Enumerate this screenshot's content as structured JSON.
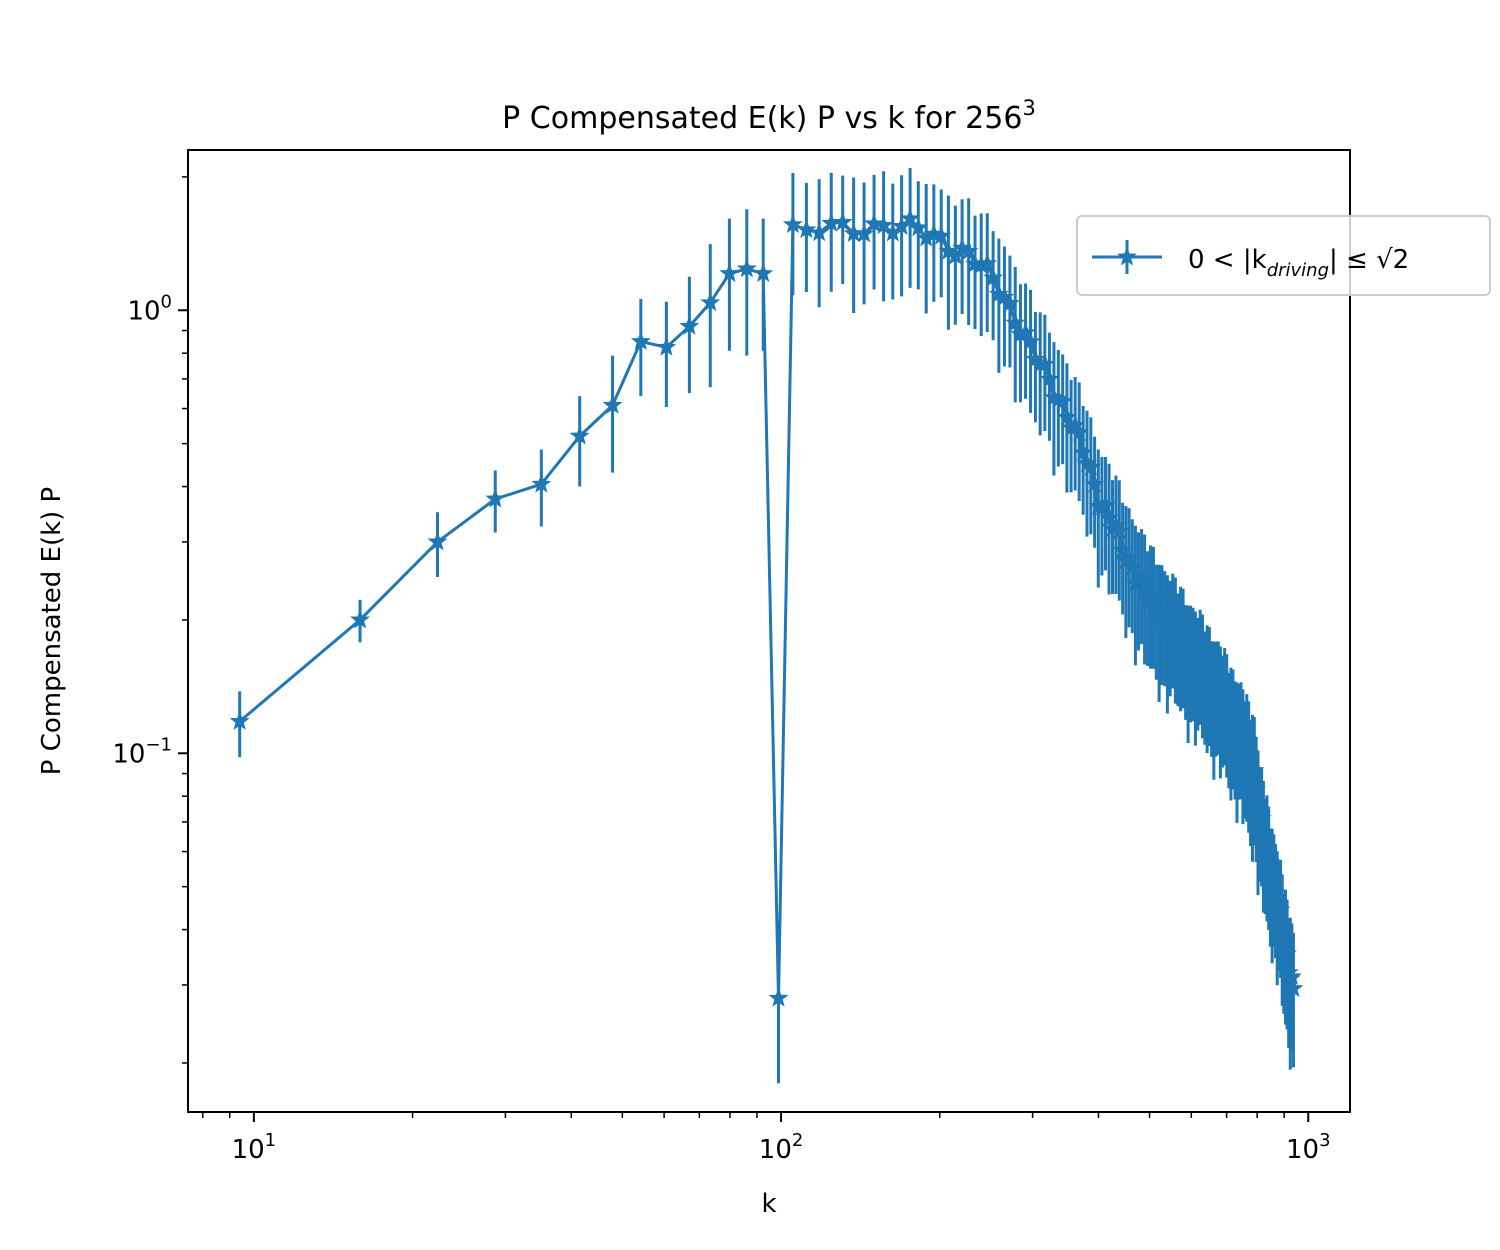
{
  "chart_data": {
    "type": "line",
    "title": {
      "main": "P Compensated E(k) P vs k for 256",
      "sup": "3"
    },
    "xlabel": "k",
    "ylabel": "P Compensated E(k) P",
    "xscale": "log",
    "yscale": "log",
    "xlim": [
      7.5,
      1200
    ],
    "ylim": [
      0.0155,
      2.3
    ],
    "xticks": [
      {
        "value": 10,
        "base": "10",
        "exp": "1"
      },
      {
        "value": 100,
        "base": "10",
        "exp": "2"
      },
      {
        "value": 1000,
        "base": "10",
        "exp": "3"
      }
    ],
    "yticks": [
      {
        "value": 0.1,
        "base": "10",
        "exp": "−1"
      },
      {
        "value": 1,
        "base": "10",
        "exp": "0"
      }
    ],
    "grid": false,
    "legend": {
      "placement": "upper right",
      "label_text": "0 < |k",
      "label_sub": "driving",
      "label_tail": "| ≤ √2"
    },
    "series": [
      {
        "name": "0 < |k_driving| ≤ √2",
        "color": "#1f77b4",
        "marker": "star",
        "x": [
          9.4,
          15.9,
          22.3,
          28.7,
          35.1,
          41.5,
          47.9,
          54.2,
          60.6,
          67.0,
          73.4,
          79.8,
          86.1,
          92.5
        ],
        "y": [
          0.118,
          0.2,
          0.3,
          0.375,
          0.405,
          0.52,
          0.61,
          0.85,
          0.825,
          0.92,
          1.04,
          1.21,
          1.24,
          1.21
        ],
        "yerr": [
          0.02,
          0.022,
          0.05,
          0.06,
          0.08,
          0.12,
          0.18,
          0.21,
          0.22,
          0.27,
          0.37,
          0.4,
          0.45,
          0.4
        ],
        "continuation_envelope": {
          "x": [
            100,
            120,
            140,
            160,
            180,
            200,
            230,
            260,
            300,
            350,
            400,
            450,
            500,
            550,
            600,
            650,
            700,
            750,
            790,
            810,
            860,
            900,
            940
          ],
          "y": [
            1.48,
            1.52,
            1.55,
            1.55,
            1.52,
            1.45,
            1.32,
            1.12,
            0.8,
            0.58,
            0.38,
            0.28,
            0.22,
            0.19,
            0.165,
            0.145,
            0.125,
            0.105,
            0.09,
            0.07,
            0.05,
            0.038,
            0.028
          ],
          "yerr": [
            0.45,
            0.46,
            0.47,
            0.47,
            0.46,
            0.43,
            0.4,
            0.34,
            0.24,
            0.17,
            0.115,
            0.085,
            0.068,
            0.058,
            0.05,
            0.044,
            0.038,
            0.033,
            0.03,
            0.022,
            0.015,
            0.012,
            0.01
          ]
        }
      }
    ]
  }
}
